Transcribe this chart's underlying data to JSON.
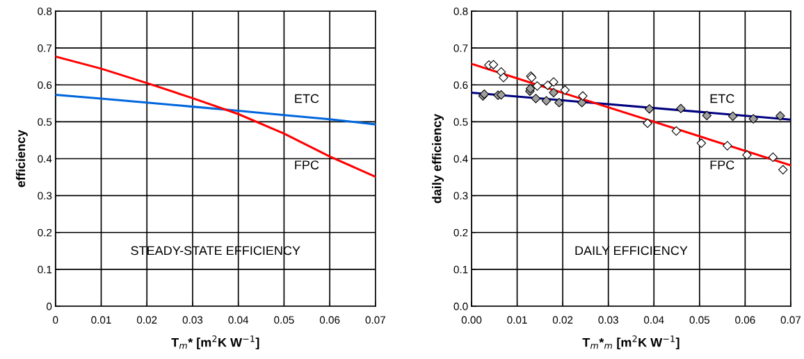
{
  "chart_data": [
    {
      "type": "line",
      "xlabel": "T$_{m}$* [m$^{2}$K W$^{−1}$]",
      "ylabel": "efficiency",
      "x": [
        0,
        0.01,
        0.02,
        0.03,
        0.04,
        0.05,
        0.06,
        0.07
      ],
      "series": [
        {
          "color": "#0066dd",
          "values": [
            0.573,
            0.563,
            0.552,
            0.541,
            0.53,
            0.518,
            0.507,
            0.493
          ]
        },
        {
          "color": "#ff0000",
          "values": [
            0.677,
            0.644,
            0.605,
            0.564,
            0.521,
            0.468,
            0.406,
            0.351
          ]
        }
      ],
      "xlim": [
        0,
        0.07
      ],
      "xticks": [
        0,
        0.01,
        0.02,
        0.03,
        0.04,
        0.05,
        0.06,
        0.07
      ],
      "ylim": [
        0,
        0.8
      ],
      "yticks": [
        0,
        0.1,
        0.2,
        0.3,
        0.4,
        0.5,
        0.6,
        0.7,
        0.8
      ],
      "grid": true,
      "annotations": [
        "ETC",
        "FPC",
        "STEADY-STATE EFFICIENCY"
      ]
    },
    {
      "type": "scatter",
      "xlabel": "T$_{m}$*$_{m}$ [m$^{2}$K W$^{−1}$]",
      "ylabel": "daily efficiency",
      "series": [
        {
          "type": "scatter",
          "color": "#a0a0a0",
          "marker": "diamond",
          "x": [
            0.0025,
            0.0028,
            0.0058,
            0.0065,
            0.0128,
            0.0129,
            0.0141,
            0.0164,
            0.018,
            0.0192,
            0.0242,
            0.039,
            0.0459,
            0.0516,
            0.0573,
            0.0618,
            0.0677
          ],
          "values": [
            0.57,
            0.575,
            0.572,
            0.573,
            0.583,
            0.59,
            0.563,
            0.557,
            0.579,
            0.552,
            0.552,
            0.535,
            0.536,
            0.517,
            0.515,
            0.508,
            0.516
          ]
        },
        {
          "type": "scatter",
          "color": "#ffffff",
          "marker": "diamond",
          "x": [
            0.0038,
            0.0048,
            0.0065,
            0.007,
            0.013,
            0.0132,
            0.0144,
            0.0167,
            0.018,
            0.0205,
            0.0244,
            0.0386,
            0.0449,
            0.0504,
            0.0561,
            0.0604,
            0.0661,
            0.0683
          ],
          "values": [
            0.654,
            0.655,
            0.635,
            0.62,
            0.624,
            0.62,
            0.597,
            0.599,
            0.608,
            0.586,
            0.57,
            0.496,
            0.475,
            0.442,
            0.435,
            0.41,
            0.404,
            0.37
          ]
        },
        {
          "type": "line",
          "color": "#000080",
          "x": [
            0,
            0.07
          ],
          "values": [
            0.579,
            0.506
          ]
        },
        {
          "type": "line",
          "color": "#ff0000",
          "x": [
            0,
            0.07
          ],
          "values": [
            0.657,
            0.382
          ]
        }
      ],
      "xlim": [
        0,
        0.07
      ],
      "xticks": [
        {
          "value": 0,
          "label": "0.00"
        },
        0.01,
        0.02,
        0.03,
        0.04,
        0.05,
        0.06,
        0.07
      ],
      "ylim": [
        0,
        0.8
      ],
      "yticks": [
        {
          "value": 0,
          "label": "0.0"
        },
        0.1,
        0.2,
        0.3,
        0.4,
        0.5,
        0.6,
        0.7,
        0.8
      ],
      "grid": true,
      "annotations": [
        "ETC",
        "FPC",
        "DAILY EFFICIENCY"
      ]
    }
  ]
}
